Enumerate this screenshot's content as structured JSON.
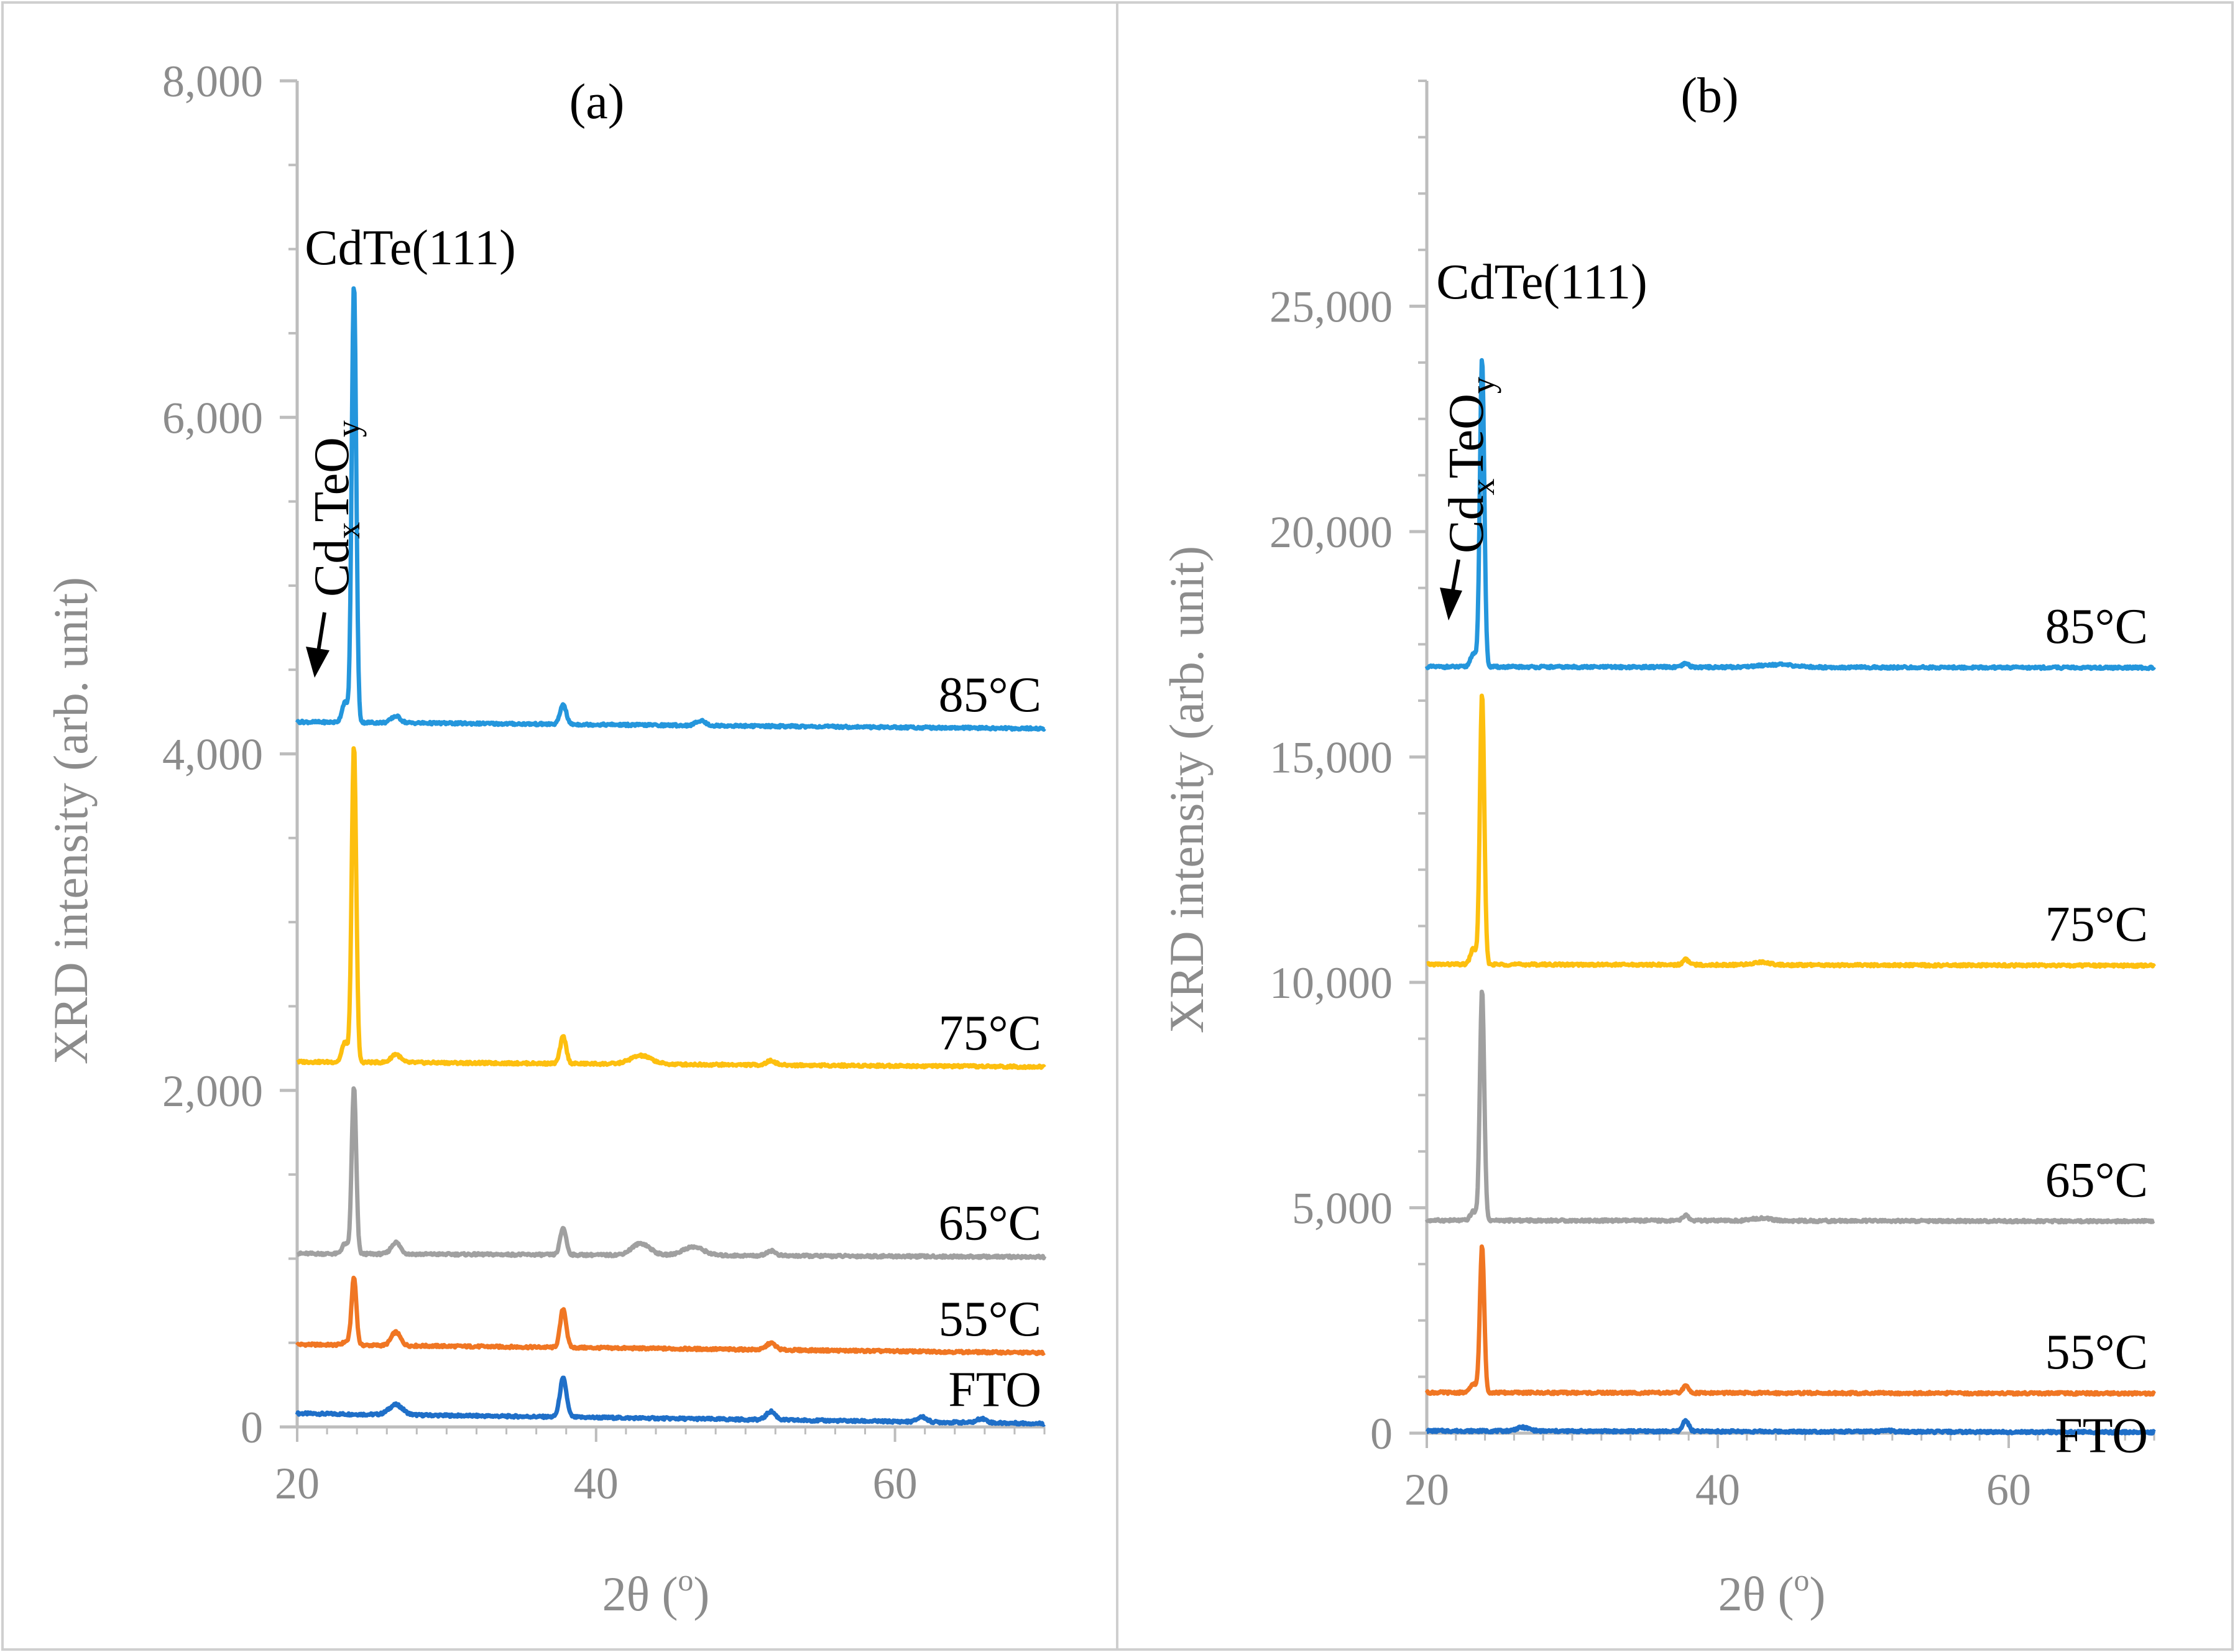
{
  "chart_data": [
    {
      "panel_id": "a",
      "type": "line",
      "panel_label": "(a)",
      "xlabel": "2θ (o)",
      "xlabel_main": "2θ (",
      "xlabel_sup": "o",
      "xlabel_end": ")",
      "ylabel": "XRD intensity (arb. unit)",
      "xlim": [
        20,
        70
      ],
      "ylim": [
        0,
        8000
      ],
      "xticks": [
        20,
        40,
        60
      ],
      "xtick_labels": [
        "20",
        "40",
        "60"
      ],
      "yticks": [
        0,
        2000,
        4000,
        6000,
        8000
      ],
      "ytick_labels": [
        "0",
        "2,000",
        "4,000",
        "6,000",
        "8,000"
      ],
      "minor_ytick_step": 500,
      "minor_xtick_step": 2,
      "peak_annotation": "CdTe(111)",
      "phase_annotation": "CdxTeOy",
      "phase_base": "Cd",
      "phase_sub_x": "x",
      "phase_mid": "TeO",
      "phase_sub_y": "y",
      "series": [
        {
          "name": "FTO",
          "label": "FTO",
          "color": "#1f6fc8",
          "baseline": 80,
          "tail": 20,
          "peaks": [
            [
              26.6,
              60,
              0.45
            ],
            [
              37.8,
              230,
              0.22
            ],
            [
              51.7,
              50,
              0.3
            ],
            [
              61.8,
              30,
              0.3
            ],
            [
              65.8,
              25,
              0.3
            ]
          ]
        },
        {
          "name": "55°C",
          "label": "55°C",
          "color": "#f07623",
          "baseline": 490,
          "tail": 440,
          "peaks": [
            [
              23.3,
              20,
              0.25
            ],
            [
              23.8,
              400,
              0.16
            ],
            [
              26.6,
              80,
              0.3
            ],
            [
              37.8,
              230,
              0.2
            ],
            [
              51.7,
              40,
              0.3
            ]
          ]
        },
        {
          "name": "65°C",
          "label": "65°C",
          "color": "#a0a0a0",
          "baseline": 1030,
          "tail": 1010,
          "peaks": [
            [
              23.2,
              60,
              0.2
            ],
            [
              23.8,
              990,
              0.15
            ],
            [
              26.6,
              70,
              0.3
            ],
            [
              37.8,
              160,
              0.2
            ],
            [
              43.0,
              70,
              0.6
            ],
            [
              46.5,
              50,
              0.7
            ],
            [
              51.7,
              30,
              0.3
            ]
          ]
        },
        {
          "name": "75°C",
          "label": "75°C",
          "color": "#fdbf0f",
          "baseline": 2170,
          "tail": 2140,
          "peaks": [
            [
              23.2,
              120,
              0.2
            ],
            [
              23.8,
              1880,
              0.15
            ],
            [
              26.6,
              50,
              0.3
            ],
            [
              37.8,
              160,
              0.2
            ],
            [
              43.0,
              50,
              0.7
            ],
            [
              51.7,
              25,
              0.3
            ]
          ]
        },
        {
          "name": "85°C",
          "label": "85°C",
          "color": "#2496dc",
          "baseline": 4190,
          "tail": 4150,
          "peaks": [
            [
              23.2,
              120,
              0.2
            ],
            [
              23.8,
              2610,
              0.15
            ],
            [
              26.6,
              40,
              0.3
            ],
            [
              37.8,
              120,
              0.2
            ],
            [
              47.0,
              30,
              0.3
            ]
          ]
        }
      ]
    },
    {
      "panel_id": "b",
      "type": "line",
      "panel_label": "(b)",
      "xlabel": "2θ (o)",
      "xlabel_main": "2θ (",
      "xlabel_sup": "o",
      "xlabel_end": ")",
      "ylabel": "XRD intensity (arb. unit)",
      "xlim": [
        20,
        70
      ],
      "ylim": [
        0,
        30000
      ],
      "xticks": [
        20,
        40,
        60
      ],
      "xtick_labels": [
        "20",
        "40",
        "60"
      ],
      "yticks": [
        0,
        5000,
        10000,
        15000,
        20000,
        25000
      ],
      "ytick_labels": [
        "0",
        "5,000",
        "10,000",
        "15,000",
        "20,000",
        "25,000"
      ],
      "minor_ytick_step": 1250,
      "minor_xtick_step": 2,
      "peak_annotation": "CdTe(111)",
      "phase_annotation": "CdxTeOy",
      "phase_base": "Cd",
      "phase_sub_x": "x",
      "phase_mid": "TeO",
      "phase_sub_y": "y",
      "series": [
        {
          "name": "FTO",
          "label": "FTO",
          "color": "#1f6fc8",
          "baseline": 50,
          "tail": 20,
          "peaks": [
            [
              26.6,
              80,
              0.45
            ],
            [
              37.8,
              250,
              0.2
            ],
            [
              51.7,
              30,
              0.3
            ]
          ]
        },
        {
          "name": "55°C",
          "label": "55°C",
          "color": "#f07623",
          "baseline": 900,
          "tail": 880,
          "peaks": [
            [
              23.2,
              200,
              0.2
            ],
            [
              23.8,
              3250,
              0.15
            ],
            [
              37.8,
              150,
              0.2
            ]
          ]
        },
        {
          "name": "65°C",
          "label": "65°C",
          "color": "#a0a0a0",
          "baseline": 4720,
          "tail": 4700,
          "peaks": [
            [
              23.2,
              200,
              0.2
            ],
            [
              23.8,
              5100,
              0.15
            ],
            [
              37.8,
              120,
              0.2
            ],
            [
              43.0,
              60,
              0.6
            ]
          ]
        },
        {
          "name": "75°C",
          "label": "75°C",
          "color": "#fdbf0f",
          "baseline": 10400,
          "tail": 10370,
          "peaks": [
            [
              23.2,
              350,
              0.2
            ],
            [
              23.8,
              6000,
              0.15
            ],
            [
              37.8,
              120,
              0.2
            ],
            [
              43.0,
              60,
              0.6
            ]
          ]
        },
        {
          "name": "85°C",
          "label": "85°C",
          "color": "#2496dc",
          "baseline": 17000,
          "tail": 16980,
          "peaks": [
            [
              23.2,
              300,
              0.2
            ],
            [
              23.8,
              6850,
              0.15
            ],
            [
              37.8,
              80,
              0.2
            ],
            [
              44.0,
              60,
              1.2
            ]
          ]
        }
      ]
    }
  ]
}
